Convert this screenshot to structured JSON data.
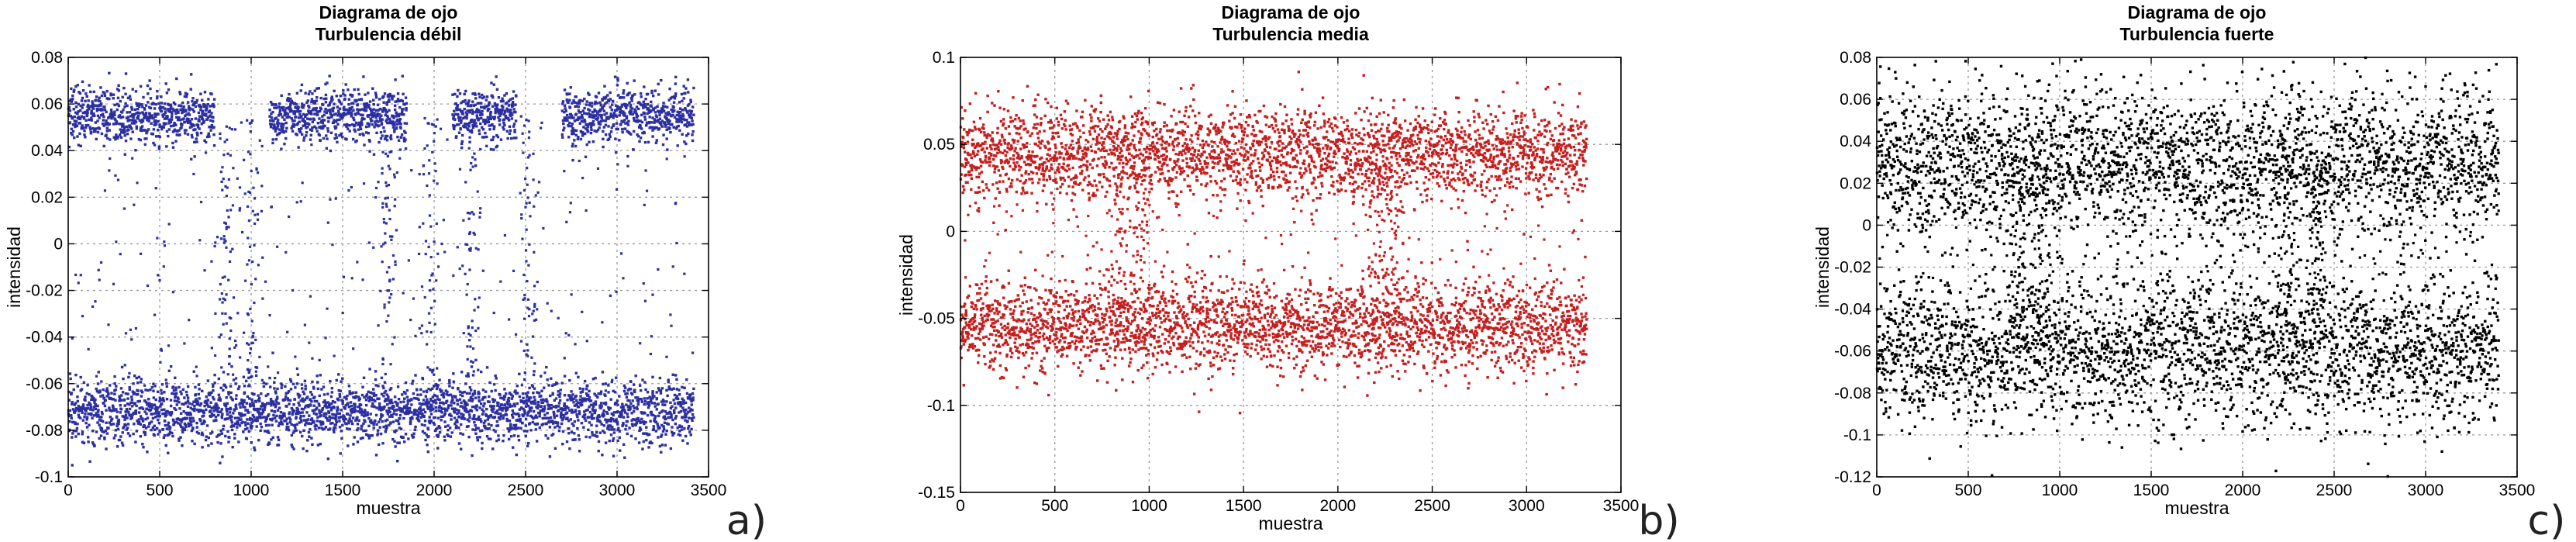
{
  "chart_data": [
    {
      "type": "scatter",
      "panel_label": "a)",
      "title": "Diagrama de ojo",
      "subtitle": "Turbulencia débil",
      "xlabel": "muestra",
      "ylabel": "intensidad",
      "xlim": [
        0,
        3500
      ],
      "ylim": [
        -0.1,
        0.08
      ],
      "xticks": [
        0,
        500,
        1000,
        1500,
        2000,
        2500,
        3000,
        3500
      ],
      "yticks": [
        -0.1,
        -0.08,
        -0.06,
        -0.04,
        -0.02,
        0,
        0.02,
        0.04,
        0.06,
        0.08
      ],
      "ytick_labels": [
        "-0.1",
        "-0.08",
        "-0.06",
        "-0.04",
        "-0.02",
        "0",
        "0.02",
        "0.04",
        "0.06",
        "0.08"
      ],
      "grid": true,
      "marker_color": "#2b2fa0",
      "n_samples": 3420,
      "levels": {
        "high": 0.055,
        "low": -0.072
      },
      "high_intervals": [
        [
          0,
          800
        ],
        [
          1100,
          1850
        ],
        [
          2100,
          2450
        ],
        [
          2700,
          3420
        ]
      ],
      "low_intervals": [
        [
          0,
          3420
        ]
      ],
      "high_spread": 0.006,
      "low_spread": 0.007,
      "transitions": [
        870,
        1000,
        1750,
        1980,
        2200,
        2520
      ]
    },
    {
      "type": "scatter",
      "panel_label": "b)",
      "title": "Diagrama de ojo",
      "subtitle": "Turbulencia media",
      "xlabel": "muestra",
      "ylabel": "intensidad",
      "xlim": [
        0,
        3500
      ],
      "ylim": [
        -0.15,
        0.1
      ],
      "xticks": [
        0,
        500,
        1000,
        1500,
        2000,
        2500,
        3000,
        3500
      ],
      "yticks": [
        -0.15,
        -0.1,
        -0.05,
        0,
        0.05,
        0.1
      ],
      "ytick_labels": [
        "-0.15",
        "-0.1",
        "-0.05",
        "0",
        "0.05",
        "0.1"
      ],
      "grid": true,
      "marker_color": "#c41e1e",
      "n_samples": 3320,
      "levels": {
        "high": 0.045,
        "low": -0.055
      },
      "high_intervals": [
        [
          0,
          3320
        ]
      ],
      "low_intervals": [
        [
          0,
          3320
        ]
      ],
      "high_spread": 0.013,
      "low_spread": 0.013,
      "transitions": [
        850,
        950,
        2200,
        2300
      ]
    },
    {
      "type": "scatter",
      "panel_label": "c)",
      "title": "Diagrama de ojo",
      "subtitle": "Turbulencia fuerte",
      "xlabel": "muestra",
      "ylabel": "intensidad",
      "xlim": [
        0,
        3500
      ],
      "ylim": [
        -0.12,
        0.08
      ],
      "xticks": [
        0,
        500,
        1000,
        1500,
        2000,
        2500,
        3000,
        3500
      ],
      "yticks": [
        -0.12,
        -0.1,
        -0.08,
        -0.06,
        -0.04,
        -0.02,
        0,
        0.02,
        0.04,
        0.06,
        0.08
      ],
      "ytick_labels": [
        "-0.12",
        "-0.1",
        "-0.08",
        "-0.06",
        "-0.04",
        "-0.02",
        "0",
        "0.02",
        "0.04",
        "0.06",
        "0.08"
      ],
      "grid": true,
      "marker_color": "#000000",
      "n_samples": 3400,
      "levels": {
        "high": 0.03,
        "low": -0.06
      },
      "high_intervals": [
        [
          0,
          3400
        ]
      ],
      "low_intervals": [
        [
          0,
          3400
        ]
      ],
      "high_spread": 0.018,
      "low_spread": 0.018,
      "transitions": [
        780,
        900,
        2250,
        2400
      ]
    }
  ]
}
